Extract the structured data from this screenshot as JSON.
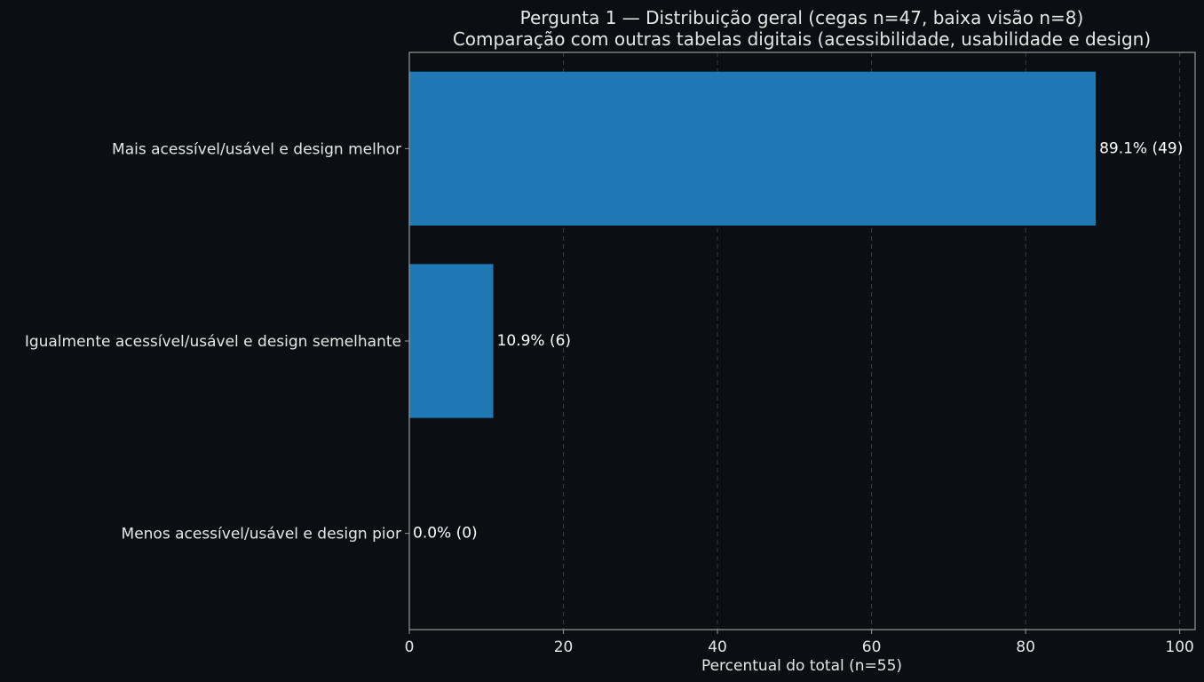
{
  "chart_data": {
    "type": "bar",
    "orientation": "horizontal",
    "title": "Pergunta 1 — Distribuição geral (cegas n=47, baixa visão n=8)",
    "subtitle": "Comparação com outras tabelas digitais (acessibilidade, usabilidade e design)",
    "xlabel": "Percentual do total (n=55)",
    "ylabel": "",
    "xlim": [
      0,
      102
    ],
    "xticks": [
      0,
      20,
      40,
      60,
      80,
      100
    ],
    "grid": "vertical-dashed",
    "categories": [
      "Mais acessível/usável e design melhor",
      "Igualmente acessível/usável e design semelhante",
      "Menos acessível/usável e design pior"
    ],
    "values": [
      89.1,
      10.9,
      0.0
    ],
    "counts": [
      49,
      6,
      0
    ],
    "data_labels": [
      "89.1% (49)",
      "10.9% (6)",
      "0.0% (0)"
    ],
    "colors": {
      "background": "#0b0e13",
      "bar": "#1f77b4",
      "text": "#e6e6e6",
      "axis": "#9a9a9a",
      "grid": "#3a3f47"
    }
  }
}
